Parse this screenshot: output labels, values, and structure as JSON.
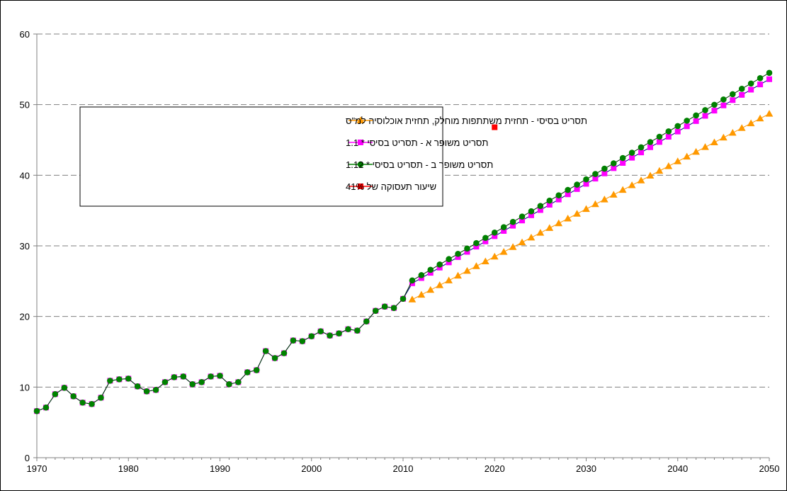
{
  "chart_data": {
    "type": "line",
    "title": "",
    "xlabel": "",
    "ylabel": "",
    "xlim": [
      1970,
      2050
    ],
    "ylim": [
      0,
      60
    ],
    "x_ticks": [
      1970,
      1980,
      1990,
      2000,
      2010,
      2020,
      2030,
      2040,
      2050
    ],
    "y_ticks": [
      0,
      10,
      20,
      30,
      40,
      50,
      60
    ],
    "grid": "horizontal-dashed",
    "legend_position": "upper-left-inside",
    "historical_x": [
      1970,
      1971,
      1972,
      1973,
      1974,
      1975,
      1976,
      1977,
      1978,
      1979,
      1980,
      1981,
      1982,
      1983,
      1984,
      1985,
      1986,
      1987,
      1988,
      1989,
      1990,
      1991,
      1992,
      1993,
      1994,
      1995,
      1996,
      1997,
      1998,
      1999,
      2000,
      2001,
      2002,
      2003,
      2004,
      2005,
      2006,
      2007,
      2008,
      2009,
      2010
    ],
    "historical_y": [
      6.6,
      7.1,
      9.0,
      9.9,
      8.7,
      7.8,
      7.6,
      8.5,
      10.9,
      11.1,
      11.2,
      10.1,
      9.4,
      9.6,
      10.7,
      11.4,
      11.5,
      10.4,
      10.7,
      11.5,
      11.6,
      10.4,
      10.7,
      12.1,
      12.4,
      15.1,
      14.1,
      14.8,
      16.6,
      16.5,
      17.2,
      17.9,
      17.3,
      17.6,
      18.2,
      18.0,
      19.3,
      20.8,
      21.4,
      21.2,
      22.5
    ],
    "series": [
      {
        "name": "תסריט בסיסי - תחזית משתתפות מוחלק, תחזית אוכלוסיה למ\"ס",
        "color": "#FF9900",
        "marker": "triangle",
        "x_start": 2011,
        "x_end": 2050,
        "y_start": 22.4,
        "y_end": 48.7,
        "includes_historical": false
      },
      {
        "name": "תסריט משופר א - תסריט בסיסי * 1.1",
        "color": "#FF00FF",
        "marker": "square",
        "x_start": 2011,
        "x_end": 2050,
        "y_start": 24.7,
        "y_end": 53.6,
        "includes_historical": true
      },
      {
        "name": "תסריט משופר ב - תסריט בסיסי * 1.12",
        "color": "#008000",
        "marker": "circle",
        "x_start": 2011,
        "x_end": 2050,
        "y_start": 25.1,
        "y_end": 54.5,
        "includes_historical": true
      },
      {
        "name": "שיעור תעסוקה של 41%",
        "color": "#FF0000",
        "marker": "square",
        "points": [
          [
            2020,
            46.8
          ]
        ]
      }
    ]
  }
}
